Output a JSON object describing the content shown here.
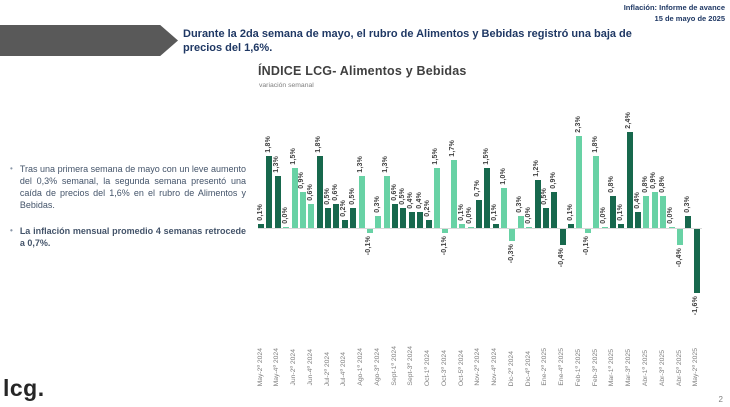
{
  "page": {
    "top_right_line1": "Inflación: Informe de avance",
    "top_right_line2": "15 de mayo de 2025",
    "page_number": "2",
    "logo": "lcg."
  },
  "banner": {
    "headline": "Durante la 2da semana de mayo, el rubro de Alimentos y Bebidas registró una baja de precios del 1,6%."
  },
  "sidebar": {
    "bullets": [
      {
        "text": "Tras una primera semana de mayo con un leve aumento del 0,3% semanal, la segunda semana presentó una caída de precios del 1,6% en el rubro de Alimentos y Bebidas.",
        "bold": false
      },
      {
        "text": "La inflación mensual promedio 4 semanas retrocede a 0,7%.",
        "bold": true
      }
    ]
  },
  "chart": {
    "title": "ÍNDICE LCG- Alimentos y Bebidas",
    "subtitle": "variación semanal"
  },
  "chart_data": {
    "type": "bar",
    "title": "ÍNDICE LCG- Alimentos y Bebidas",
    "subtitle": "variación semanal",
    "unit": "percent weekly variation",
    "value_axis_hidden": true,
    "grid": false,
    "ylim": [
      -2.0,
      2.6
    ],
    "colors": {
      "dark": "#17684d",
      "light": "#68d2a5"
    },
    "bars": [
      {
        "axis_label": "May-2ª 2024",
        "value": 0.1,
        "display": "0,1%",
        "color": "dark"
      },
      {
        "axis_label": "",
        "value": 1.8,
        "display": "1,8%",
        "color": "dark"
      },
      {
        "axis_label": "May-4ª 2024",
        "value": 1.3,
        "display": "1,3%",
        "color": "dark"
      },
      {
        "axis_label": "",
        "value": 0.0,
        "display": "0,0%",
        "color": "light"
      },
      {
        "axis_label": "Jun-2ª 2024",
        "value": 1.5,
        "display": "1,5%",
        "color": "light"
      },
      {
        "axis_label": "",
        "value": 0.9,
        "display": "0,9%",
        "color": "light"
      },
      {
        "axis_label": "Jun-4ª 2024",
        "value": 0.6,
        "display": "0,6%",
        "color": "light"
      },
      {
        "axis_label": "",
        "value": 1.8,
        "display": "1,8%",
        "color": "dark"
      },
      {
        "axis_label": "Jul-2ª 2024",
        "value": 0.5,
        "display": "0,5%",
        "color": "dark"
      },
      {
        "axis_label": "",
        "value": 0.6,
        "display": "0,6%",
        "color": "dark"
      },
      {
        "axis_label": "Jul-4ª 2024",
        "value": 0.2,
        "display": "0,2%",
        "color": "dark"
      },
      {
        "axis_label": "",
        "value": 0.5,
        "display": "0,5%",
        "color": "dark"
      },
      {
        "axis_label": "Ago-1ª 2024",
        "value": 1.3,
        "display": "1,3%",
        "color": "light"
      },
      {
        "axis_label": "",
        "value": -0.1,
        "display": "-0,1%",
        "color": "light"
      },
      {
        "axis_label": "Ago-3ª 2024",
        "value": 0.3,
        "display": "0,3%",
        "color": "light"
      },
      {
        "axis_label": "",
        "value": 1.3,
        "display": "1,3%",
        "color": "light"
      },
      {
        "axis_label": "Sept-1ª 2024",
        "value": 0.6,
        "display": "0,6%",
        "color": "dark"
      },
      {
        "axis_label": "",
        "value": 0.5,
        "display": "0,5%",
        "color": "dark"
      },
      {
        "axis_label": "Sept-3ª 2024",
        "value": 0.4,
        "display": "0,4%",
        "color": "dark"
      },
      {
        "axis_label": "",
        "value": 0.4,
        "display": "0,4%",
        "color": "dark"
      },
      {
        "axis_label": "Oct-1ª 2024",
        "value": 0.2,
        "display": "0,2%",
        "color": "dark"
      },
      {
        "axis_label": "",
        "value": 1.5,
        "display": "1,5%",
        "color": "light"
      },
      {
        "axis_label": "Oct-3ª 2024",
        "value": -0.1,
        "display": "-0,1%",
        "color": "light"
      },
      {
        "axis_label": "",
        "value": 1.7,
        "display": "1,7%",
        "color": "light"
      },
      {
        "axis_label": "Oct-5ª 2024",
        "value": 0.1,
        "display": "0,1%",
        "color": "light"
      },
      {
        "axis_label": "",
        "value": 0.0,
        "display": "0,0%",
        "color": "light"
      },
      {
        "axis_label": "Nov-2ª 2024",
        "value": 0.7,
        "display": "0,7%",
        "color": "dark"
      },
      {
        "axis_label": "",
        "value": 1.5,
        "display": "1,5%",
        "color": "dark"
      },
      {
        "axis_label": "Nov-4ª 2024",
        "value": 0.1,
        "display": "0,1%",
        "color": "dark"
      },
      {
        "axis_label": "",
        "value": 1.0,
        "display": "1,0%",
        "color": "light"
      },
      {
        "axis_label": "Dic-2ª 2024",
        "value": -0.3,
        "display": "-0,3%",
        "color": "light"
      },
      {
        "axis_label": "",
        "value": 0.3,
        "display": "0,3%",
        "color": "light"
      },
      {
        "axis_label": "Dic-4ª 2024",
        "value": 0.0,
        "display": "0,0%",
        "color": "light"
      },
      {
        "axis_label": "",
        "value": 1.2,
        "display": "1,2%",
        "color": "dark"
      },
      {
        "axis_label": "Ene-2ª 2025",
        "value": 0.5,
        "display": "0,5%",
        "color": "dark"
      },
      {
        "axis_label": "",
        "value": 0.9,
        "display": "0,9%",
        "color": "dark"
      },
      {
        "axis_label": "Ene-4ª 2025",
        "value": -0.4,
        "display": "-0,4%",
        "color": "dark"
      },
      {
        "axis_label": "",
        "value": 0.1,
        "display": "0,1%",
        "color": "dark"
      },
      {
        "axis_label": "Feb-1ª 2025",
        "value": 2.3,
        "display": "2,3%",
        "color": "light"
      },
      {
        "axis_label": "",
        "value": -0.1,
        "display": "-0,1%",
        "color": "light"
      },
      {
        "axis_label": "Feb-3ª 2025",
        "value": 1.8,
        "display": "1,8%",
        "color": "light"
      },
      {
        "axis_label": "",
        "value": 0.0,
        "display": "0,0%",
        "color": "light"
      },
      {
        "axis_label": "Mar-1ª 2025",
        "value": 0.8,
        "display": "0,8%",
        "color": "dark"
      },
      {
        "axis_label": "",
        "value": 0.1,
        "display": "0,1%",
        "color": "dark"
      },
      {
        "axis_label": "Mar-3ª 2025",
        "value": 2.4,
        "display": "2,4%",
        "color": "dark"
      },
      {
        "axis_label": "",
        "value": 0.4,
        "display": "0,4%",
        "color": "dark"
      },
      {
        "axis_label": "Abr-1ª 2025",
        "value": 0.8,
        "display": "0,8%",
        "color": "light"
      },
      {
        "axis_label": "",
        "value": 0.9,
        "display": "0,9%",
        "color": "light"
      },
      {
        "axis_label": "Abr-3ª 2025",
        "value": 0.8,
        "display": "0,8%",
        "color": "light"
      },
      {
        "axis_label": "",
        "value": 0.0,
        "display": "0,0%",
        "color": "light"
      },
      {
        "axis_label": "Abr-5ª 2025",
        "value": -0.4,
        "display": "-0,4%",
        "color": "light"
      },
      {
        "axis_label": "",
        "value": 0.3,
        "display": "0,3%",
        "color": "dark"
      },
      {
        "axis_label": "May-2ª 2025",
        "value": -1.6,
        "display": "-1,6%",
        "color": "dark"
      }
    ]
  }
}
